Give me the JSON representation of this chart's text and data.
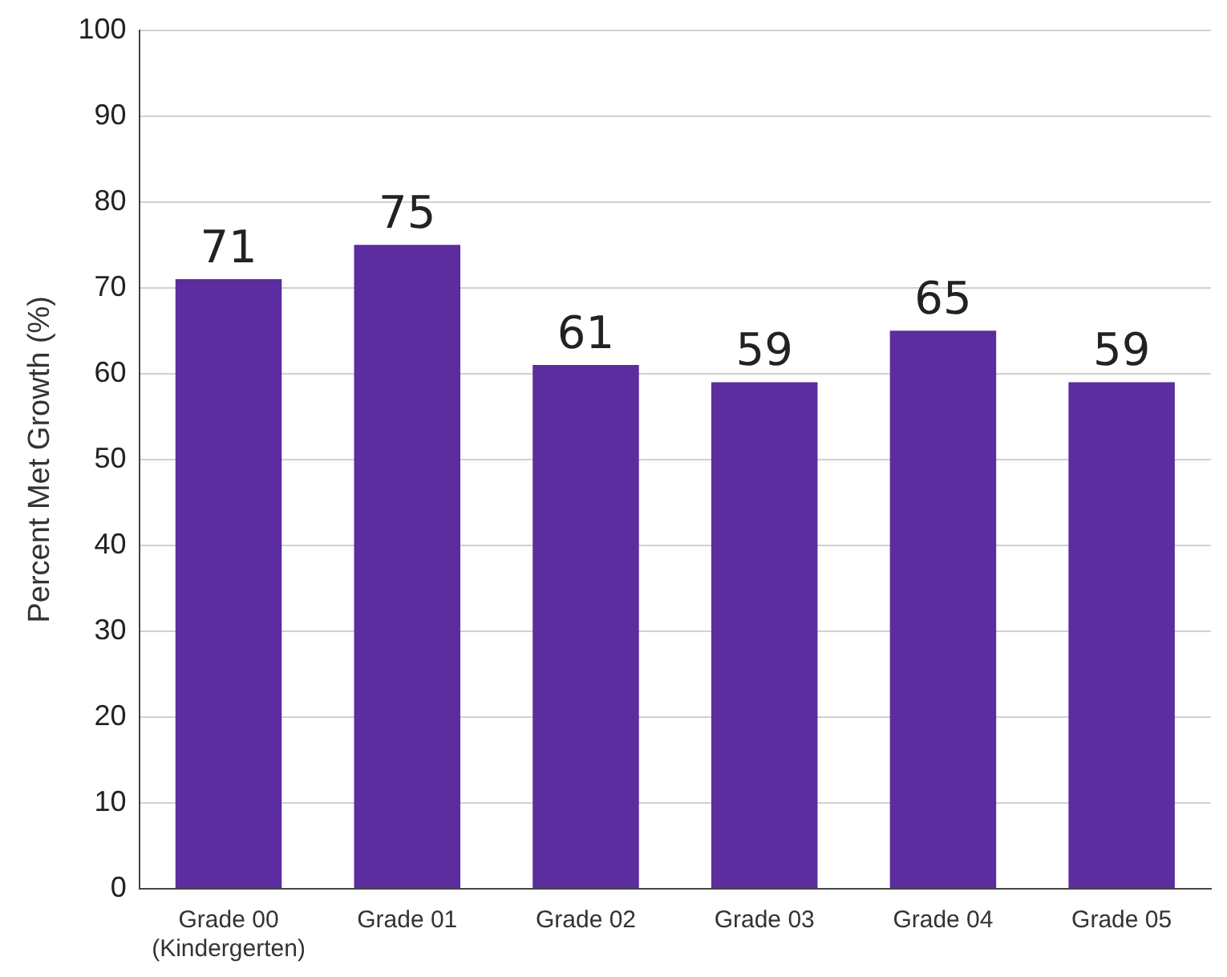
{
  "chart_data": {
    "type": "bar",
    "ylabel": "Percent Met Growth (%)",
    "categories": [
      "Grade 00\n(Kindergerten)",
      "Grade 01",
      "Grade 02",
      "Grade 03",
      "Grade 04",
      "Grade 05"
    ],
    "values": [
      71,
      75,
      61,
      59,
      65,
      59
    ],
    "color": "#5c2d9e",
    "ylim": [
      0,
      100
    ],
    "yticks": [
      0,
      10,
      20,
      30,
      40,
      50,
      60,
      70,
      80,
      90,
      100
    ],
    "grid": "y",
    "data_labels": true,
    "legend": false
  }
}
